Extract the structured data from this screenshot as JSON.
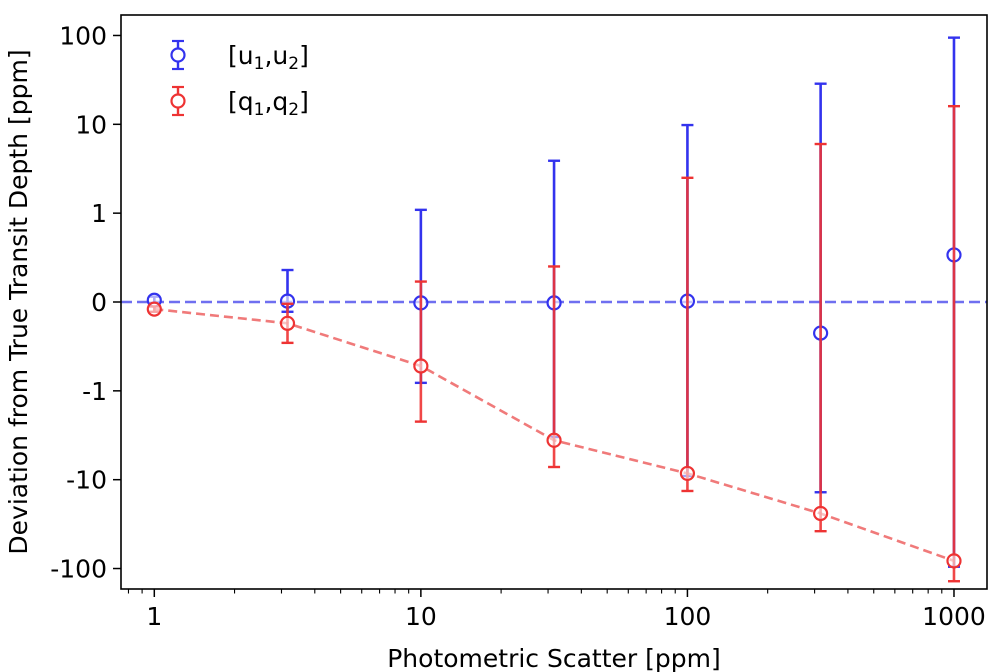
{
  "chart_data": {
    "type": "scatter",
    "title": "",
    "xlabel": "Photometric Scatter [ppm]",
    "ylabel": "Deviation from True Transit Depth [ppm]",
    "xscale": "log",
    "yscale": "symlog",
    "symlog_linthresh": 1,
    "xlim": [
      0.75,
      1330
    ],
    "ylim": [
      -170,
      170
    ],
    "x_ticks": [
      {
        "value": 1,
        "label": "1"
      },
      {
        "value": 10,
        "label": "10"
      },
      {
        "value": 100,
        "label": "100"
      },
      {
        "value": 1000,
        "label": "1000"
      }
    ],
    "y_ticks": [
      {
        "value": 100,
        "label": "100"
      },
      {
        "value": 10,
        "label": "10"
      },
      {
        "value": 1,
        "label": "1"
      },
      {
        "value": 0,
        "label": "0"
      },
      {
        "value": -1,
        "label": "-1"
      },
      {
        "value": -10,
        "label": "-10"
      },
      {
        "value": -100,
        "label": "-100"
      }
    ],
    "reference_line": {
      "y": 0,
      "style": "dashed",
      "color": "#6f6ff0"
    },
    "legend_position": "top-left",
    "series": [
      {
        "name": "[u₁,u₂]",
        "legend_base": "[u",
        "legend_sub1": "1",
        "legend_mid": ",u",
        "legend_sub2": "2",
        "legend_end": "]",
        "color": "#3333ee",
        "connect": false,
        "x": [
          1,
          3.16,
          10,
          31.6,
          100,
          316,
          1000
        ],
        "y": [
          0.02,
          0.01,
          -0.01,
          -0.01,
          0.01,
          -0.35,
          0.53
        ],
        "yerr_low": [
          0.03,
          0.12,
          0.9,
          3.3,
          9.1,
          13.5,
          96.0
        ],
        "yerr_high": [
          0.04,
          0.35,
          1.1,
          3.9,
          9.8,
          29.0,
          94.0
        ]
      },
      {
        "name": "[q₁,q₂]",
        "legend_base": "[q",
        "legend_sub1": "1",
        "legend_mid": ",q",
        "legend_sub2": "2",
        "legend_end": "]",
        "color": "#ee3333",
        "line_color": "#f07a7a",
        "connect": true,
        "x": [
          1,
          3.16,
          10,
          31.6,
          100,
          316,
          1000
        ],
        "y": [
          -0.08,
          -0.24,
          -0.72,
          -3.6,
          -8.5,
          -24.0,
          -82.0
        ],
        "yerr_low": [
          0.03,
          0.22,
          1.5,
          3.6,
          4.9,
          14.0,
          57.0
        ],
        "yerr_high": [
          0.03,
          0.22,
          0.95,
          4.0,
          11.0,
          30.0,
          98.0
        ]
      }
    ]
  }
}
